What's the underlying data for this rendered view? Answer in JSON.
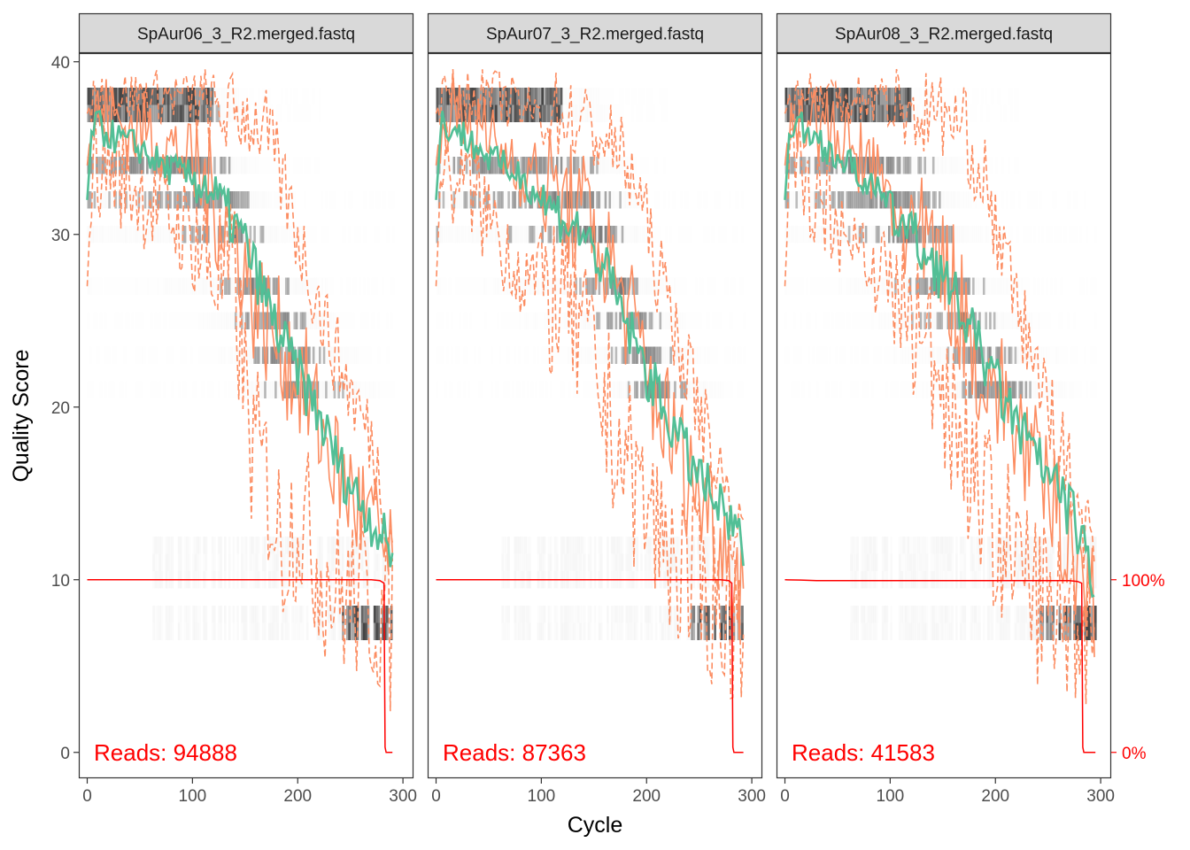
{
  "chart_data": {
    "type": "line",
    "xlabel": "Cycle",
    "ylabel": "Quality Score",
    "xlim": [
      -8,
      310
    ],
    "ylim": [
      -1.5,
      40.5
    ],
    "x_ticks": [
      "0",
      "100",
      "200",
      "300"
    ],
    "y_ticks": [
      "0",
      "10",
      "20",
      "30",
      "40"
    ],
    "secondary_y_ticks": [
      "0%",
      "100%"
    ],
    "colors": {
      "mean": "#52bf96",
      "quartile": "#fc8d62",
      "cumulative": "#ff0000",
      "heat_dark": "#222222",
      "heat_light": "#f0f0f0"
    },
    "panels": [
      {
        "title": "SpAur06_3_R2.merged.fastq",
        "reads_label": "Reads:  94888",
        "max_cycle": 290,
        "drop_cycle": 282,
        "mean": [
          [
            0,
            32
          ],
          [
            5,
            36.5
          ],
          [
            15,
            36
          ],
          [
            30,
            35.5
          ],
          [
            50,
            35
          ],
          [
            70,
            34
          ],
          [
            90,
            33.5
          ],
          [
            110,
            33
          ],
          [
            130,
            31.5
          ],
          [
            150,
            29.5
          ],
          [
            165,
            27
          ],
          [
            180,
            24.5
          ],
          [
            200,
            22
          ],
          [
            220,
            19.5
          ],
          [
            240,
            16.5
          ],
          [
            260,
            14.5
          ],
          [
            275,
            13
          ],
          [
            285,
            12
          ],
          [
            290,
            11.5
          ]
        ],
        "median": [
          [
            0,
            34
          ],
          [
            5,
            37
          ],
          [
            20,
            37
          ],
          [
            40,
            36
          ],
          [
            60,
            36
          ],
          [
            80,
            35
          ],
          [
            100,
            34
          ],
          [
            120,
            32
          ],
          [
            140,
            30
          ],
          [
            160,
            26
          ],
          [
            180,
            24
          ],
          [
            200,
            22
          ],
          [
            220,
            19
          ],
          [
            240,
            16
          ],
          [
            260,
            14
          ],
          [
            280,
            12
          ],
          [
            290,
            10
          ]
        ],
        "q25": [
          [
            0,
            27
          ],
          [
            5,
            34
          ],
          [
            20,
            34
          ],
          [
            40,
            33
          ],
          [
            60,
            32
          ],
          [
            80,
            31
          ],
          [
            100,
            30
          ],
          [
            120,
            28
          ],
          [
            140,
            27
          ],
          [
            155,
            18
          ],
          [
            170,
            16
          ],
          [
            185,
            12
          ],
          [
            200,
            14
          ],
          [
            220,
            11
          ],
          [
            240,
            9
          ],
          [
            260,
            9
          ],
          [
            280,
            8
          ],
          [
            290,
            7
          ]
        ],
        "q75": [
          [
            0,
            37
          ],
          [
            5,
            38
          ],
          [
            30,
            38
          ],
          [
            60,
            38
          ],
          [
            90,
            38
          ],
          [
            120,
            37
          ],
          [
            150,
            37
          ],
          [
            170,
            36
          ],
          [
            190,
            32
          ],
          [
            210,
            28
          ],
          [
            230,
            24
          ],
          [
            250,
            21
          ],
          [
            270,
            18
          ],
          [
            285,
            14
          ],
          [
            290,
            12
          ]
        ],
        "cumulative_percent": [
          [
            0,
            100
          ],
          [
            150,
            100
          ],
          [
            270,
            100
          ],
          [
            278,
            99.5
          ],
          [
            282,
            98
          ],
          [
            283,
            3
          ],
          [
            284,
            0
          ],
          [
            290,
            0
          ]
        ]
      },
      {
        "title": "SpAur07_3_R2.merged.fastq",
        "reads_label": "Reads:  87363",
        "max_cycle": 292,
        "drop_cycle": 281,
        "mean": [
          [
            0,
            32
          ],
          [
            5,
            36.5
          ],
          [
            20,
            36
          ],
          [
            40,
            35
          ],
          [
            60,
            34
          ],
          [
            80,
            33.5
          ],
          [
            100,
            32
          ],
          [
            120,
            31
          ],
          [
            140,
            30
          ],
          [
            160,
            28
          ],
          [
            180,
            25
          ],
          [
            200,
            22
          ],
          [
            220,
            19.5
          ],
          [
            240,
            17
          ],
          [
            260,
            15
          ],
          [
            275,
            13.5
          ],
          [
            285,
            12.5
          ],
          [
            292,
            12
          ]
        ],
        "median": [
          [
            0,
            34
          ],
          [
            5,
            37
          ],
          [
            20,
            37
          ],
          [
            40,
            36
          ],
          [
            60,
            35
          ],
          [
            80,
            34
          ],
          [
            100,
            33
          ],
          [
            120,
            32
          ],
          [
            140,
            31
          ],
          [
            160,
            29
          ],
          [
            180,
            26
          ],
          [
            200,
            22
          ],
          [
            220,
            19
          ],
          [
            240,
            16
          ],
          [
            260,
            14
          ],
          [
            280,
            11
          ],
          [
            292,
            10
          ]
        ],
        "q25": [
          [
            0,
            27
          ],
          [
            5,
            34
          ],
          [
            20,
            33
          ],
          [
            40,
            32
          ],
          [
            60,
            30
          ],
          [
            80,
            28
          ],
          [
            100,
            27
          ],
          [
            120,
            26
          ],
          [
            140,
            24
          ],
          [
            160,
            20
          ],
          [
            180,
            17
          ],
          [
            200,
            14
          ],
          [
            220,
            12
          ],
          [
            240,
            10
          ],
          [
            260,
            9
          ],
          [
            280,
            8
          ],
          [
            292,
            8
          ]
        ],
        "q75": [
          [
            0,
            37
          ],
          [
            5,
            38
          ],
          [
            30,
            38
          ],
          [
            60,
            38
          ],
          [
            90,
            37
          ],
          [
            120,
            37
          ],
          [
            150,
            36
          ],
          [
            170,
            35
          ],
          [
            190,
            33
          ],
          [
            210,
            28
          ],
          [
            230,
            24
          ],
          [
            250,
            20
          ],
          [
            270,
            16
          ],
          [
            285,
            13
          ],
          [
            292,
            12
          ]
        ],
        "cumulative_percent": [
          [
            0,
            100
          ],
          [
            150,
            100
          ],
          [
            270,
            100
          ],
          [
            278,
            99.5
          ],
          [
            281,
            98
          ],
          [
            282,
            3
          ],
          [
            283,
            0
          ],
          [
            292,
            0
          ]
        ]
      },
      {
        "title": "SpAur08_3_R2.merged.fastq",
        "reads_label": "Reads:  41583",
        "max_cycle": 295,
        "drop_cycle": 282,
        "mean": [
          [
            0,
            32
          ],
          [
            5,
            36.5
          ],
          [
            20,
            36
          ],
          [
            40,
            35
          ],
          [
            60,
            34
          ],
          [
            80,
            33
          ],
          [
            100,
            31.5
          ],
          [
            120,
            30
          ],
          [
            140,
            28.5
          ],
          [
            160,
            26.5
          ],
          [
            180,
            24
          ],
          [
            200,
            21.5
          ],
          [
            220,
            19
          ],
          [
            240,
            17
          ],
          [
            260,
            15
          ],
          [
            275,
            13.5
          ],
          [
            285,
            12
          ],
          [
            290,
            10
          ],
          [
            295,
            8
          ]
        ],
        "median": [
          [
            0,
            34
          ],
          [
            5,
            37
          ],
          [
            20,
            37
          ],
          [
            40,
            36
          ],
          [
            60,
            35
          ],
          [
            80,
            34
          ],
          [
            100,
            32
          ],
          [
            120,
            30
          ],
          [
            140,
            29
          ],
          [
            160,
            27
          ],
          [
            180,
            23
          ],
          [
            200,
            21
          ],
          [
            220,
            19
          ],
          [
            240,
            16
          ],
          [
            260,
            14
          ],
          [
            280,
            11
          ],
          [
            295,
            8
          ]
        ],
        "q25": [
          [
            0,
            27
          ],
          [
            5,
            34
          ],
          [
            20,
            33
          ],
          [
            40,
            32
          ],
          [
            60,
            30
          ],
          [
            80,
            29
          ],
          [
            100,
            27
          ],
          [
            120,
            25
          ],
          [
            140,
            23
          ],
          [
            160,
            20
          ],
          [
            180,
            16
          ],
          [
            200,
            13
          ],
          [
            220,
            11
          ],
          [
            240,
            9
          ],
          [
            260,
            8
          ],
          [
            280,
            8
          ],
          [
            295,
            7
          ]
        ],
        "q75": [
          [
            0,
            37
          ],
          [
            5,
            38
          ],
          [
            30,
            38
          ],
          [
            60,
            38
          ],
          [
            90,
            38
          ],
          [
            120,
            37
          ],
          [
            150,
            37
          ],
          [
            170,
            36
          ],
          [
            190,
            33
          ],
          [
            210,
            28
          ],
          [
            230,
            24
          ],
          [
            250,
            20
          ],
          [
            270,
            16
          ],
          [
            285,
            13
          ],
          [
            295,
            11
          ]
        ],
        "cumulative_percent": [
          [
            0,
            100
          ],
          [
            15,
            99.8
          ],
          [
            30,
            99.5
          ],
          [
            150,
            99.5
          ],
          [
            270,
            99.5
          ],
          [
            278,
            99
          ],
          [
            282,
            98
          ],
          [
            283,
            3
          ],
          [
            284,
            0
          ],
          [
            295,
            0
          ]
        ]
      }
    ]
  }
}
